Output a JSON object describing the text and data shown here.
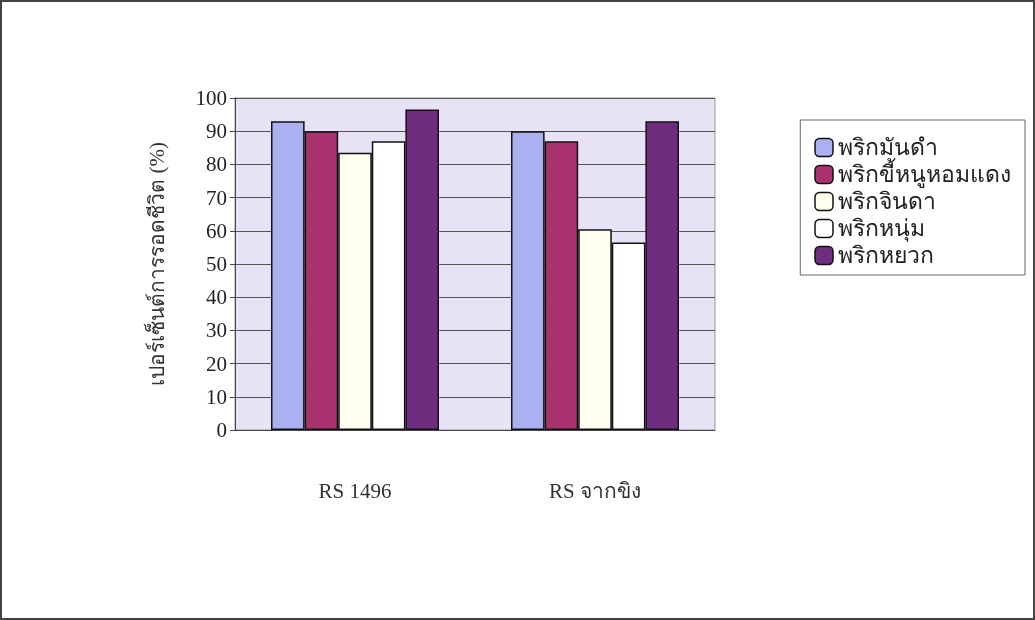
{
  "chart_data": {
    "type": "bar",
    "ylabel": "เปอร์เซ็นต์การรอดชีวิต (%)",
    "categories": [
      "RS 1496",
      "RS จากขิง"
    ],
    "series": [
      {
        "name": "พริกมันดำ",
        "color": "#aab0f0",
        "values": [
          93,
          90
        ]
      },
      {
        "name": "พริกขี้หนูหอมแดง",
        "color": "#a8336f",
        "values": [
          90,
          87
        ]
      },
      {
        "name": "พริกจินดา",
        "color": "#ffffee",
        "values": [
          83.5,
          60.5
        ]
      },
      {
        "name": "พริกหนุ่ม",
        "color": "#ffffff",
        "values": [
          87,
          56.5
        ]
      },
      {
        "name": "พริกหยวก",
        "color": "#6f2d7f",
        "values": [
          96.5,
          93
        ]
      }
    ],
    "ylim": [
      0,
      100
    ],
    "yticks": [
      0,
      10,
      20,
      30,
      40,
      50,
      60,
      70,
      80,
      90,
      100
    ],
    "grid": "y",
    "legend": "right"
  }
}
